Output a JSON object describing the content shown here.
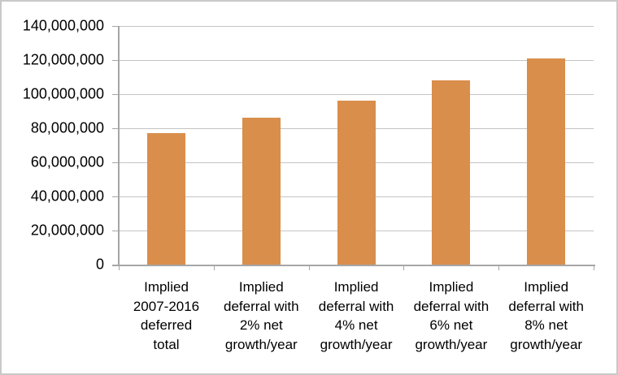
{
  "chart_data": {
    "type": "bar",
    "title": "",
    "xlabel": "",
    "ylabel": "",
    "categories": [
      "Implied 2007-2016 deferred total",
      "Implied deferral with 2% net growth/year",
      "Implied deferral with 4% net growth/year",
      "Implied deferral with 6% net growth/year",
      "Implied deferral with 8% net growth/year"
    ],
    "category_label_lines": [
      [
        "Implied",
        "2007-2016",
        "deferred",
        "total"
      ],
      [
        "Implied",
        "deferral with",
        "2% net",
        "growth/year"
      ],
      [
        "Implied",
        "deferral with",
        "4% net",
        "growth/year"
      ],
      [
        "Implied",
        "deferral with",
        "6% net",
        "growth/year"
      ],
      [
        "Implied",
        "deferral with",
        "8% net",
        "growth/year"
      ]
    ],
    "values": [
      77000000,
      86000000,
      96000000,
      108000000,
      121000000
    ],
    "ylim": [
      0,
      140000000
    ],
    "y_tick_step": 20000000,
    "y_tick_labels": [
      "0",
      "20,000,000",
      "40,000,000",
      "60,000,000",
      "80,000,000",
      "100,000,000",
      "120,000,000",
      "140,000,000"
    ],
    "grid": true,
    "legend": false,
    "colors": {
      "bar": "#d98e4b",
      "gridline": "#c4c4c4",
      "axis": "#a6a6a6",
      "text": "#000000",
      "frame_border": "#c9c9c9",
      "background": "#ffffff"
    }
  }
}
